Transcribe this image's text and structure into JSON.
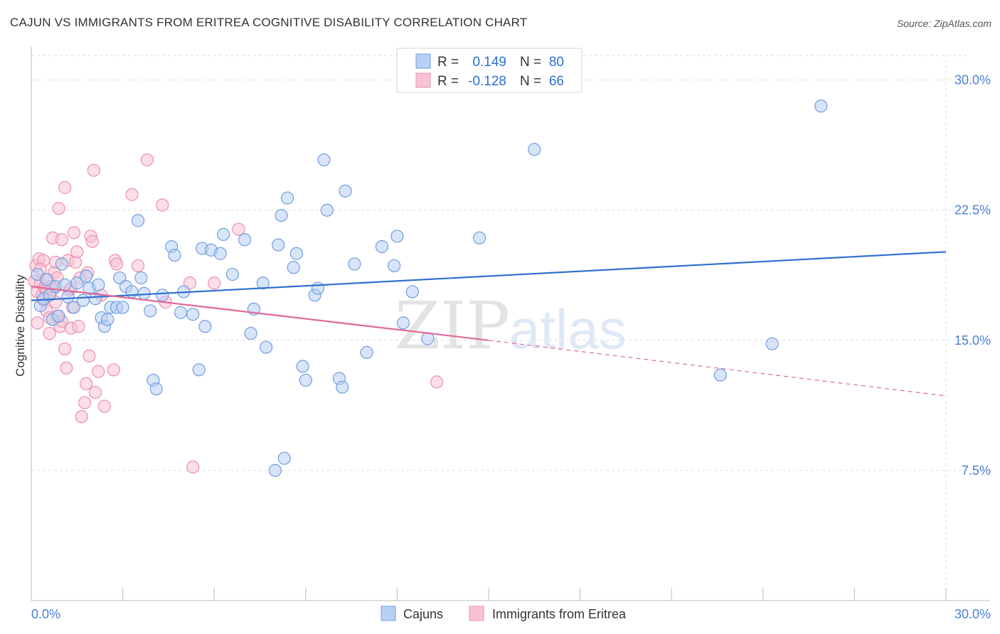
{
  "title": "CAJUN VS IMMIGRANTS FROM ERITREA COGNITIVE DISABILITY CORRELATION CHART",
  "source": "Source: ZipAtlas.com",
  "watermark": {
    "zip": "ZIP",
    "atlas": "atlas"
  },
  "colors": {
    "blue_fill": "#b8d0f2",
    "blue_stroke": "#6f9ee0",
    "blue_line": "#2f6fd0",
    "pink_fill": "#f7c3d4",
    "pink_stroke": "#ec8fb0",
    "pink_line": "#e0689a",
    "tick_text": "#4a7fd4",
    "grid": "#dddddd"
  },
  "legend_top": {
    "rows": [
      {
        "r_label": "R =",
        "r_value": "0.149",
        "n_label": "N =",
        "n_value": "80"
      },
      {
        "r_label": "R =",
        "r_value": "-0.128",
        "n_label": "N =",
        "n_value": "66"
      }
    ]
  },
  "chart_data": {
    "type": "scatter",
    "ylabel": "Cognitive Disability",
    "x_tick_labels": [
      "0.0%",
      "30.0%"
    ],
    "y_tick_labels": [
      "7.5%",
      "15.0%",
      "22.5%",
      "30.0%"
    ],
    "xlim": [
      0,
      30
    ],
    "ylim": [
      0,
      31.5
    ],
    "y_ticks": [
      7.5,
      15,
      22.5,
      30
    ],
    "grid": true,
    "legend_position": "bottom",
    "series": [
      {
        "name": "Cajuns",
        "points": [
          [
            0.2,
            18.8
          ],
          [
            0.3,
            17.0
          ],
          [
            0.4,
            17.4
          ],
          [
            0.5,
            18.5
          ],
          [
            0.6,
            17.6
          ],
          [
            0.7,
            16.2
          ],
          [
            0.8,
            18.1
          ],
          [
            0.9,
            16.4
          ],
          [
            1.0,
            19.4
          ],
          [
            1.1,
            18.2
          ],
          [
            1.2,
            17.5
          ],
          [
            1.4,
            16.9
          ],
          [
            1.5,
            18.3
          ],
          [
            1.7,
            17.3
          ],
          [
            1.8,
            18.7
          ],
          [
            1.9,
            18.0
          ],
          [
            2.1,
            17.4
          ],
          [
            2.2,
            18.2
          ],
          [
            2.3,
            16.3
          ],
          [
            2.4,
            15.8
          ],
          [
            2.5,
            16.2
          ],
          [
            2.6,
            16.9
          ],
          [
            2.8,
            16.9
          ],
          [
            2.9,
            18.6
          ],
          [
            3.0,
            16.9
          ],
          [
            3.1,
            18.1
          ],
          [
            3.3,
            17.8
          ],
          [
            3.5,
            21.9
          ],
          [
            3.6,
            18.6
          ],
          [
            3.7,
            17.7
          ],
          [
            3.9,
            16.7
          ],
          [
            4.0,
            12.7
          ],
          [
            4.1,
            12.2
          ],
          [
            4.3,
            17.6
          ],
          [
            4.6,
            20.4
          ],
          [
            4.7,
            19.9
          ],
          [
            4.9,
            16.6
          ],
          [
            5.0,
            17.8
          ],
          [
            5.3,
            16.5
          ],
          [
            5.5,
            13.3
          ],
          [
            5.6,
            20.3
          ],
          [
            5.7,
            15.8
          ],
          [
            5.9,
            20.2
          ],
          [
            6.2,
            20.0
          ],
          [
            6.3,
            21.1
          ],
          [
            6.6,
            18.8
          ],
          [
            7.0,
            20.8
          ],
          [
            7.2,
            15.4
          ],
          [
            7.3,
            16.8
          ],
          [
            7.6,
            18.3
          ],
          [
            7.7,
            14.6
          ],
          [
            8.0,
            7.5
          ],
          [
            8.1,
            20.5
          ],
          [
            8.2,
            22.2
          ],
          [
            8.3,
            8.2
          ],
          [
            8.4,
            23.2
          ],
          [
            8.6,
            19.2
          ],
          [
            8.7,
            20.0
          ],
          [
            8.9,
            13.5
          ],
          [
            9.0,
            12.7
          ],
          [
            9.3,
            17.6
          ],
          [
            9.4,
            18.0
          ],
          [
            9.6,
            25.4
          ],
          [
            9.7,
            22.5
          ],
          [
            10.1,
            12.8
          ],
          [
            10.2,
            12.3
          ],
          [
            10.3,
            23.6
          ],
          [
            10.6,
            19.4
          ],
          [
            11.0,
            14.3
          ],
          [
            11.5,
            20.4
          ],
          [
            11.9,
            19.3
          ],
          [
            12.0,
            21.0
          ],
          [
            12.2,
            16.0
          ],
          [
            12.5,
            17.8
          ],
          [
            13.0,
            15.1
          ],
          [
            14.7,
            20.9
          ],
          [
            16.5,
            26.0
          ],
          [
            24.3,
            14.8
          ],
          [
            22.6,
            13.0
          ],
          [
            25.9,
            28.5
          ]
        ]
      },
      {
        "name": "Immigrants from Eritrea",
        "points": [
          [
            0.1,
            18.4
          ],
          [
            0.15,
            19.3
          ],
          [
            0.2,
            17.8
          ],
          [
            0.2,
            16.0
          ],
          [
            0.25,
            19.7
          ],
          [
            0.3,
            18.3
          ],
          [
            0.35,
            17.6
          ],
          [
            0.4,
            19.6
          ],
          [
            0.45,
            18.0
          ],
          [
            0.5,
            16.7
          ],
          [
            0.5,
            17.9
          ],
          [
            0.55,
            18.5
          ],
          [
            0.6,
            16.3
          ],
          [
            0.6,
            15.4
          ],
          [
            0.7,
            20.9
          ],
          [
            0.7,
            17.9
          ],
          [
            0.75,
            18.9
          ],
          [
            0.8,
            19.5
          ],
          [
            0.8,
            17.2
          ],
          [
            0.85,
            18.6
          ],
          [
            0.9,
            22.6
          ],
          [
            0.95,
            15.8
          ],
          [
            1.0,
            20.8
          ],
          [
            1.0,
            16.1
          ],
          [
            1.1,
            23.8
          ],
          [
            1.1,
            14.5
          ],
          [
            1.15,
            13.4
          ],
          [
            1.2,
            19.6
          ],
          [
            1.25,
            17.9
          ],
          [
            1.3,
            15.7
          ],
          [
            1.3,
            18.0
          ],
          [
            1.4,
            21.2
          ],
          [
            1.45,
            19.5
          ],
          [
            1.5,
            20.1
          ],
          [
            1.55,
            15.8
          ],
          [
            1.6,
            18.6
          ],
          [
            1.65,
            10.6
          ],
          [
            1.75,
            11.4
          ],
          [
            1.8,
            12.5
          ],
          [
            1.85,
            18.9
          ],
          [
            1.9,
            14.1
          ],
          [
            1.95,
            21.0
          ],
          [
            2.0,
            20.7
          ],
          [
            2.05,
            24.8
          ],
          [
            2.1,
            12.0
          ],
          [
            2.2,
            13.2
          ],
          [
            2.3,
            17.6
          ],
          [
            2.4,
            11.2
          ],
          [
            2.7,
            13.3
          ],
          [
            2.75,
            19.6
          ],
          [
            2.8,
            19.4
          ],
          [
            3.3,
            23.4
          ],
          [
            3.5,
            19.3
          ],
          [
            3.8,
            25.4
          ],
          [
            4.3,
            22.8
          ],
          [
            4.4,
            17.2
          ],
          [
            5.2,
            18.3
          ],
          [
            5.3,
            7.7
          ],
          [
            6.0,
            18.3
          ],
          [
            6.8,
            21.4
          ],
          [
            13.3,
            12.6
          ],
          [
            0.3,
            19.1
          ],
          [
            0.4,
            17.3
          ],
          [
            0.65,
            18.1
          ],
          [
            1.35,
            16.9
          ],
          [
            0.85,
            16.4
          ]
        ]
      }
    ],
    "trend_lines": [
      {
        "name": "Cajuns",
        "x": [
          0,
          30
        ],
        "y": [
          17.3,
          20.1
        ],
        "style": "solid"
      },
      {
        "name": "Immigrants from Eritrea",
        "x": [
          0,
          15
        ],
        "y": [
          18.1,
          15.0
        ],
        "style": "solid"
      },
      {
        "name": "Immigrants from Eritrea",
        "x": [
          15,
          30
        ],
        "y": [
          15.0,
          11.8
        ],
        "style": "dashed"
      }
    ]
  }
}
